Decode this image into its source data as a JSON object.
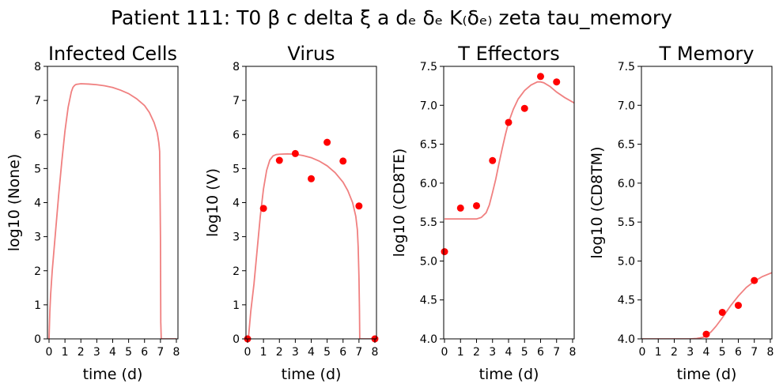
{
  "figure": {
    "suptitle": "Patient 111: T0 β c delta ξ a dₑ δₑ K₍δₑ₎ zeta tau_memory",
    "colors": {
      "model_line": "#f08080",
      "observed_points": "#ff0000",
      "axes": "#000000"
    }
  },
  "chart_data": [
    {
      "type": "line",
      "title": "Infected Cells",
      "xlabel": "time (d)",
      "ylabel": "log10 (None)",
      "xlim": [
        -0.1,
        8.1
      ],
      "ylim": [
        0,
        8
      ],
      "xticks": [
        0,
        1,
        2,
        3,
        4,
        5,
        6,
        7,
        8
      ],
      "yticks": [
        0,
        1,
        2,
        3,
        4,
        5,
        6,
        7,
        8
      ],
      "ytick_labels": [
        "0",
        "1",
        "2",
        "3",
        "4",
        "5",
        "6",
        "7",
        "8"
      ],
      "series": [
        {
          "kind": "line",
          "x": [
            0,
            0.05,
            0.1,
            0.2,
            0.4,
            0.6,
            0.8,
            1.0,
            1.2,
            1.4,
            1.5,
            1.6,
            1.7,
            2.0,
            2.5,
            3.0,
            3.5,
            4.0,
            4.5,
            5.0,
            5.5,
            6.0,
            6.3,
            6.6,
            6.8,
            6.9,
            6.95,
            7.0,
            7.02,
            7.05,
            7.1,
            7.5,
            8.0
          ],
          "y": [
            0,
            0.8,
            1.3,
            2.0,
            3.1,
            4.2,
            5.2,
            6.1,
            6.8,
            7.25,
            7.38,
            7.44,
            7.47,
            7.49,
            7.48,
            7.46,
            7.43,
            7.38,
            7.3,
            7.2,
            7.05,
            6.85,
            6.65,
            6.35,
            6.05,
            5.75,
            5.5,
            3.0,
            0.5,
            0,
            0,
            0,
            0
          ]
        }
      ]
    },
    {
      "type": "line",
      "title": "Virus",
      "xlabel": "time (d)",
      "ylabel": "log10 (V)",
      "xlim": [
        -0.1,
        8.1
      ],
      "ylim": [
        0,
        8
      ],
      "xticks": [
        0,
        1,
        2,
        3,
        4,
        5,
        6,
        7,
        8
      ],
      "yticks": [
        0,
        1,
        2,
        3,
        4,
        5,
        6,
        7,
        8
      ],
      "ytick_labels": [
        "0",
        "1",
        "2",
        "3",
        "4",
        "5",
        "6",
        "7",
        "8"
      ],
      "series": [
        {
          "kind": "line",
          "x": [
            0.05,
            0.2,
            0.4,
            0.6,
            0.8,
            1.0,
            1.2,
            1.4,
            1.6,
            1.8,
            2.0,
            2.5,
            3.0,
            3.5,
            4.0,
            4.5,
            5.0,
            5.5,
            6.0,
            6.3,
            6.6,
            6.8,
            6.9,
            6.95,
            7.0,
            7.03,
            7.05,
            7.08,
            7.1,
            8.0
          ],
          "y": [
            0,
            0.8,
            1.6,
            2.6,
            3.6,
            4.4,
            4.95,
            5.25,
            5.37,
            5.41,
            5.42,
            5.43,
            5.42,
            5.38,
            5.32,
            5.22,
            5.08,
            4.88,
            4.6,
            4.35,
            4.0,
            3.6,
            3.2,
            2.7,
            1.8,
            0.9,
            0,
            0,
            0,
            0
          ]
        },
        {
          "kind": "scatter",
          "x": [
            0,
            1,
            2,
            3,
            4,
            5,
            6,
            7,
            8
          ],
          "y": [
            0,
            3.83,
            5.24,
            5.44,
            4.7,
            5.77,
            5.22,
            3.9,
            0
          ]
        }
      ]
    },
    {
      "type": "line",
      "title": "T Effectors",
      "xlabel": "time (d)",
      "ylabel": "log10 (CD8TE)",
      "xlim": [
        -0.05,
        8.1
      ],
      "ylim": [
        4.0,
        7.5
      ],
      "xticks": [
        0,
        1,
        2,
        3,
        4,
        5,
        6,
        7,
        8
      ],
      "yticks": [
        4.0,
        4.5,
        5.0,
        5.5,
        6.0,
        6.5,
        7.0,
        7.5
      ],
      "ytick_labels": [
        "4.0",
        "4.5",
        "5.0",
        "5.5",
        "6.0",
        "6.5",
        "7.0",
        "7.5"
      ],
      "series": [
        {
          "kind": "line",
          "x": [
            0,
            1,
            2,
            2.3,
            2.6,
            2.8,
            3.0,
            3.2,
            3.4,
            3.6,
            3.8,
            4.0,
            4.3,
            4.6,
            5.0,
            5.4,
            5.8,
            6.0,
            6.2,
            6.6,
            7.0,
            7.5,
            8.1
          ],
          "y": [
            5.54,
            5.54,
            5.54,
            5.56,
            5.62,
            5.72,
            5.88,
            6.05,
            6.25,
            6.44,
            6.62,
            6.78,
            6.95,
            7.08,
            7.19,
            7.26,
            7.3,
            7.3,
            7.29,
            7.24,
            7.17,
            7.1,
            7.03
          ]
        },
        {
          "kind": "scatter",
          "x": [
            0,
            1,
            2,
            3,
            4,
            5,
            6,
            7
          ],
          "y": [
            5.12,
            5.68,
            5.71,
            6.29,
            6.78,
            6.96,
            7.37,
            7.3
          ]
        }
      ]
    },
    {
      "type": "line",
      "title": "T Memory",
      "xlabel": "time (d)",
      "ylabel": "log10 (CD8TM)",
      "xlim": [
        -0.05,
        8.1
      ],
      "ylim": [
        4.0,
        7.5
      ],
      "xticks": [
        0,
        1,
        2,
        3,
        4,
        5,
        6,
        7,
        8
      ],
      "yticks": [
        4.0,
        4.5,
        5.0,
        5.5,
        6.0,
        6.5,
        7.0,
        7.5
      ],
      "ytick_labels": [
        "4.0",
        "4.5",
        "5.0",
        "5.5",
        "6.0",
        "6.5",
        "7.0",
        "7.5"
      ],
      "series": [
        {
          "kind": "line",
          "x": [
            0,
            1,
            2,
            3,
            3.4,
            3.8,
            4.0,
            4.3,
            4.6,
            5.0,
            5.5,
            6.0,
            6.5,
            7.0,
            7.5,
            8.1
          ],
          "y": [
            4.0,
            4.0,
            4.0,
            4.0,
            4.005,
            4.02,
            4.04,
            4.09,
            4.16,
            4.27,
            4.42,
            4.55,
            4.66,
            4.74,
            4.8,
            4.85
          ]
        },
        {
          "kind": "scatter",
          "x": [
            4,
            5,
            6,
            7
          ],
          "y": [
            4.06,
            4.34,
            4.43,
            4.75
          ]
        }
      ]
    }
  ]
}
